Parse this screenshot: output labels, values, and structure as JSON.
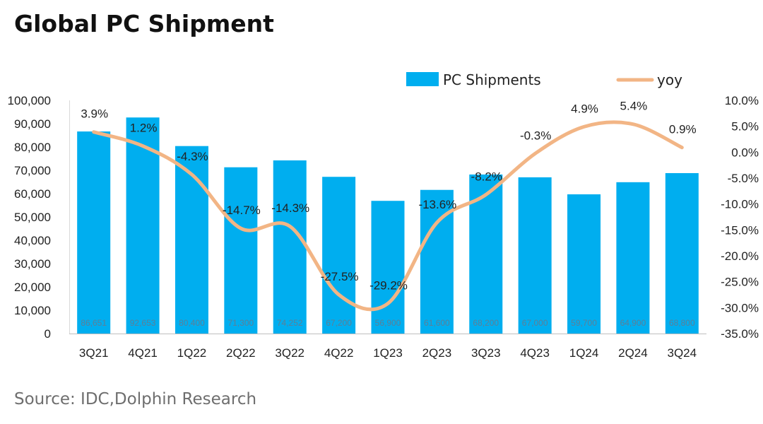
{
  "title": "Global PC Shipment",
  "source": "Source: IDC,Dolphin Research",
  "colors": {
    "bar": "#00aeef",
    "line": "#f2b585"
  },
  "chart_data": {
    "type": "bar",
    "categories": [
      "3Q21",
      "4Q21",
      "1Q22",
      "2Q22",
      "3Q22",
      "4Q22",
      "1Q23",
      "2Q23",
      "3Q23",
      "4Q23",
      "1Q24",
      "2Q24",
      "3Q24"
    ],
    "series": [
      {
        "name": "PC Shipments",
        "type": "bar",
        "axis": "left",
        "values": [
          86651,
          92653,
          80400,
          71300,
          74252,
          67200,
          56900,
          61600,
          68200,
          67000,
          59700,
          64900,
          68800
        ],
        "labels": [
          "86,651",
          "92,653",
          "80,400",
          "71,300",
          "74,252",
          "67,200",
          "56,900",
          "61,600",
          "68,200",
          "67,000",
          "59,700",
          "64,900",
          "68,800"
        ]
      },
      {
        "name": "yoy",
        "type": "line",
        "axis": "right",
        "values": [
          3.9,
          1.2,
          -4.3,
          -14.7,
          -14.3,
          -27.5,
          -29.2,
          -13.6,
          -8.2,
          -0.3,
          4.9,
          5.4,
          0.9
        ],
        "labels": [
          "3.9%",
          "1.2%",
          "-4.3%",
          "-14.7%",
          "-14.3%",
          "-27.5%",
          "-29.2%",
          "-13.6%",
          "-8.2%",
          "-0.3%",
          "4.9%",
          "5.4%",
          "0.9%"
        ]
      }
    ],
    "y_left": {
      "min": 0,
      "max": 100000,
      "ticks": [
        0,
        10000,
        20000,
        30000,
        40000,
        50000,
        60000,
        70000,
        80000,
        90000,
        100000
      ],
      "tick_labels": [
        "0",
        "10,000",
        "20,000",
        "30,000",
        "40,000",
        "50,000",
        "60,000",
        "70,000",
        "80,000",
        "90,000",
        "100,000"
      ]
    },
    "y_right": {
      "min": -35,
      "max": 10,
      "ticks": [
        10,
        5,
        0,
        -5,
        -10,
        -15,
        -20,
        -25,
        -30,
        -35
      ],
      "tick_labels": [
        "10.0%",
        "5.0%",
        "0.0%",
        "-5.0%",
        "-10.0%",
        "-15.0%",
        "-20.0%",
        "-25.0%",
        "-30.0%",
        "-35.0%"
      ]
    },
    "legend": {
      "position": "top",
      "entries": [
        "PC Shipments",
        "yoy"
      ]
    },
    "grid": false
  }
}
